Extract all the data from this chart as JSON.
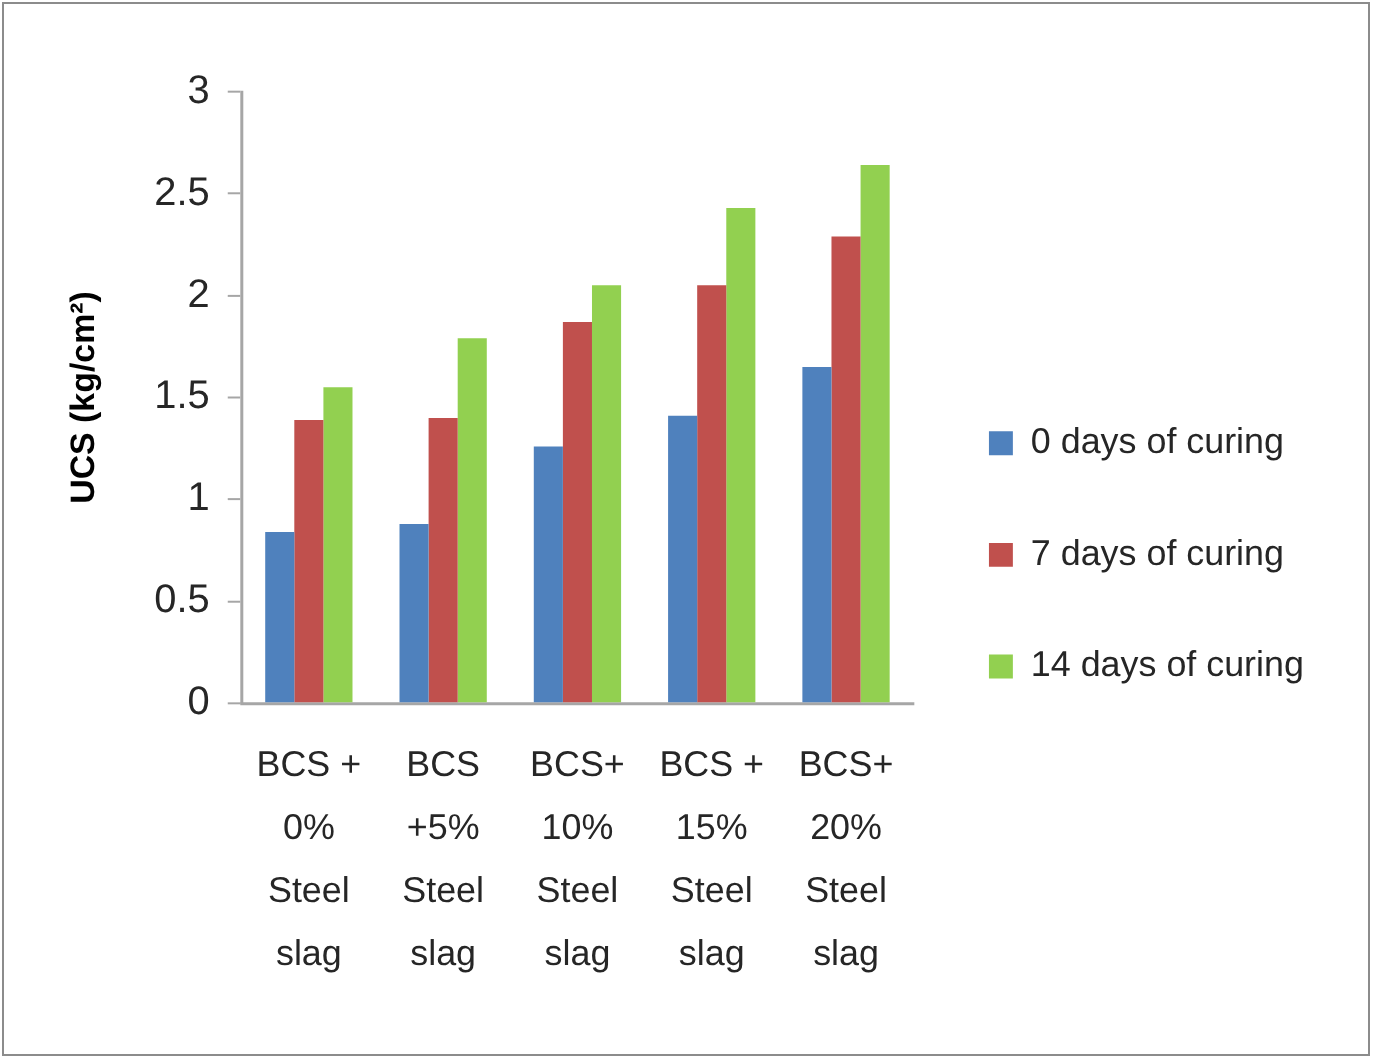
{
  "chart_data": {
    "type": "bar",
    "ylabel": "UCS (kg/cm²)",
    "categories": [
      "BCS + 0% Steel slag",
      "BCS +5% Steel slag",
      "BCS+ 10% Steel slag",
      "BCS + 15% Steel slag",
      "BCS+ 20% Steel slag"
    ],
    "series": [
      {
        "name": "0 days of curing",
        "color": "#4f81bd",
        "values": [
          0.84,
          0.88,
          1.26,
          1.41,
          1.65
        ]
      },
      {
        "name": "7 days of curing",
        "color": "#c0504d",
        "values": [
          1.39,
          1.4,
          1.87,
          2.05,
          2.29
        ]
      },
      {
        "name": "14 days of curing",
        "color": "#92d050",
        "values": [
          1.55,
          1.79,
          2.05,
          2.43,
          2.64
        ]
      }
    ],
    "ylim": [
      0,
      3
    ],
    "yticks": [
      0,
      0.5,
      1,
      1.5,
      2,
      2.5,
      3
    ],
    "grid": false,
    "legend": "right"
  }
}
